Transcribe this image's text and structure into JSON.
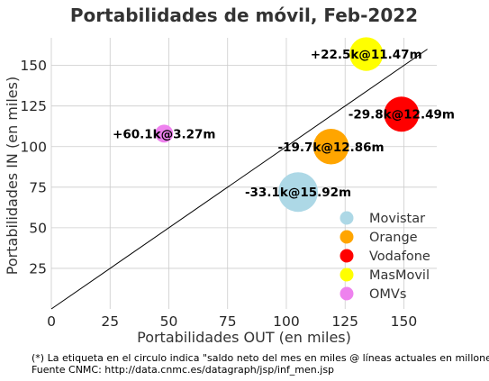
{
  "chart_data": {
    "type": "scatter",
    "title": "Portabilidades de móvil, Feb-2022",
    "xlabel": "Portabilidades OUT (en miles)",
    "ylabel": "Portabilidades IN (en miles)",
    "xlim": [
      0,
      164
    ],
    "ylim": [
      0,
      167
    ],
    "xticks": [
      0,
      25,
      50,
      75,
      100,
      125,
      150
    ],
    "yticks": [
      25,
      50,
      75,
      100,
      125,
      150
    ],
    "grid": true,
    "legend_position": "bottom-right",
    "reference_line": {
      "from": [
        0,
        0
      ],
      "to": [
        160,
        160
      ]
    },
    "points": [
      {
        "name": "Movistar",
        "x": 105,
        "y": 72,
        "label": "-33.1k@15.92m",
        "lines_millions": 15.92,
        "color": "#add8e6"
      },
      {
        "name": "Orange",
        "x": 119,
        "y": 100,
        "label": "-19.7k@12.86m",
        "lines_millions": 12.86,
        "color": "#ffa500"
      },
      {
        "name": "Vodafone",
        "x": 149,
        "y": 120,
        "label": "-29.8k@12.49m",
        "lines_millions": 12.49,
        "color": "#ff0000"
      },
      {
        "name": "MasMovil",
        "x": 134,
        "y": 157,
        "label": "+22.5k@11.47m",
        "lines_millions": 11.47,
        "color": "#ffff00"
      },
      {
        "name": "OMVs",
        "x": 48,
        "y": 108,
        "label": "+60.1k@3.27m",
        "lines_millions": 3.27,
        "color": "#ee82ee"
      }
    ]
  },
  "footnotes": {
    "note": "(*) La etiqueta en el circulo indica \"saldo neto del mes en miles @ líneas actuales en millones\"",
    "source": "Fuente CNMC: http://data.cnmc.es/datagraph/jsp/inf_men.jsp"
  }
}
